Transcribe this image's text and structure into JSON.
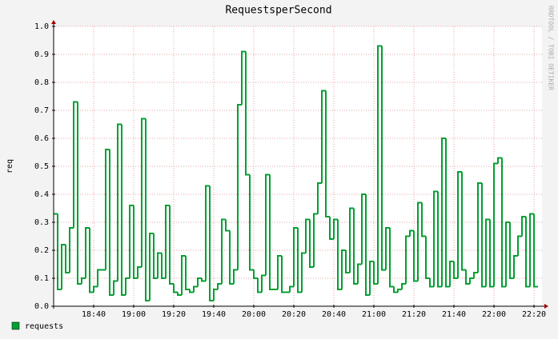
{
  "chart_data": {
    "type": "step",
    "title": "RequestsperSecond",
    "y_label": "req",
    "watermark": "RRDTOOL / TOBI OETIKER",
    "grid": true,
    "xlim": [
      "18:20",
      "22:24"
    ],
    "xticks": [
      "18:40",
      "19:00",
      "19:20",
      "19:40",
      "20:00",
      "20:20",
      "20:40",
      "21:00",
      "21:20",
      "21:40",
      "22:00",
      "22:20"
    ],
    "ylim": [
      0,
      1
    ],
    "yticks": [
      {
        "value": 0,
        "label": "0.0"
      },
      {
        "value": 0.1,
        "label": "0.1"
      },
      {
        "value": 0.2,
        "label": "0.2"
      },
      {
        "value": 0.3,
        "label": "0.3"
      },
      {
        "value": 0.4,
        "label": "0.4"
      },
      {
        "value": 0.5,
        "label": "0.5"
      },
      {
        "value": 0.6,
        "label": "0.6"
      },
      {
        "value": 0.7,
        "label": "0.7"
      },
      {
        "value": 0.8,
        "label": "0.8"
      },
      {
        "value": 0.9,
        "label": "0.9"
      },
      {
        "value": 1,
        "label": "1.0"
      }
    ],
    "x": [
      "18:20",
      "18:22",
      "18:24",
      "18:26",
      "18:28",
      "18:30",
      "18:32",
      "18:34",
      "18:36",
      "18:38",
      "18:40",
      "18:42",
      "18:44",
      "18:46",
      "18:48",
      "18:50",
      "18:52",
      "18:54",
      "18:56",
      "18:58",
      "19:00",
      "19:02",
      "19:04",
      "19:06",
      "19:08",
      "19:10",
      "19:12",
      "19:14",
      "19:16",
      "19:18",
      "19:20",
      "19:22",
      "19:24",
      "19:26",
      "19:28",
      "19:30",
      "19:32",
      "19:34",
      "19:36",
      "19:38",
      "19:40",
      "19:42",
      "19:44",
      "19:46",
      "19:48",
      "19:50",
      "19:52",
      "19:54",
      "19:56",
      "19:58",
      "20:00",
      "20:02",
      "20:04",
      "20:06",
      "20:08",
      "20:10",
      "20:12",
      "20:14",
      "20:16",
      "20:18",
      "20:20",
      "20:22",
      "20:24",
      "20:26",
      "20:28",
      "20:30",
      "20:32",
      "20:34",
      "20:36",
      "20:38",
      "20:40",
      "20:42",
      "20:44",
      "20:46",
      "20:48",
      "20:50",
      "20:52",
      "20:54",
      "20:56",
      "20:58",
      "21:00",
      "21:02",
      "21:04",
      "21:06",
      "21:08",
      "21:10",
      "21:12",
      "21:14",
      "21:16",
      "21:18",
      "21:20",
      "21:22",
      "21:24",
      "21:26",
      "21:28",
      "21:30",
      "21:32",
      "21:34",
      "21:36",
      "21:38",
      "21:40",
      "21:42",
      "21:44",
      "21:46",
      "21:48",
      "21:50",
      "21:52",
      "21:54",
      "21:56",
      "21:58",
      "22:00",
      "22:02",
      "22:04",
      "22:06",
      "22:08",
      "22:10",
      "22:12",
      "22:14",
      "22:16",
      "22:18",
      "22:20"
    ],
    "series": [
      {
        "name": "requests",
        "color": "#00a030",
        "values": [
          0.33,
          0.06,
          0.22,
          0.12,
          0.28,
          0.73,
          0.08,
          0.1,
          0.28,
          0.05,
          0.07,
          0.13,
          0.13,
          0.56,
          0.04,
          0.09,
          0.65,
          0.04,
          0.1,
          0.36,
          0.1,
          0.14,
          0.67,
          0.02,
          0.26,
          0.1,
          0.19,
          0.1,
          0.36,
          0.08,
          0.05,
          0.04,
          0.18,
          0.06,
          0.05,
          0.07,
          0.1,
          0.09,
          0.43,
          0.02,
          0.06,
          0.08,
          0.31,
          0.27,
          0.08,
          0.13,
          0.72,
          0.91,
          0.47,
          0.13,
          0.1,
          0.05,
          0.11,
          0.47,
          0.06,
          0.06,
          0.18,
          0.05,
          0.05,
          0.07,
          0.28,
          0.05,
          0.19,
          0.31,
          0.14,
          0.33,
          0.44,
          0.77,
          0.32,
          0.24,
          0.31,
          0.06,
          0.2,
          0.12,
          0.35,
          0.08,
          0.15,
          0.4,
          0.04,
          0.16,
          0.08,
          0.93,
          0.13,
          0.28,
          0.07,
          0.05,
          0.06,
          0.08,
          0.25,
          0.27,
          0.09,
          0.37,
          0.25,
          0.1,
          0.07,
          0.41,
          0.07,
          0.6,
          0.07,
          0.16,
          0.1,
          0.48,
          0.13,
          0.08,
          0.1,
          0.12,
          0.44,
          0.07,
          0.31,
          0.07,
          0.51,
          0.53,
          0.07,
          0.3,
          0.1,
          0.18,
          0.25,
          0.32,
          0.07,
          0.33,
          0.07
        ]
      }
    ]
  }
}
